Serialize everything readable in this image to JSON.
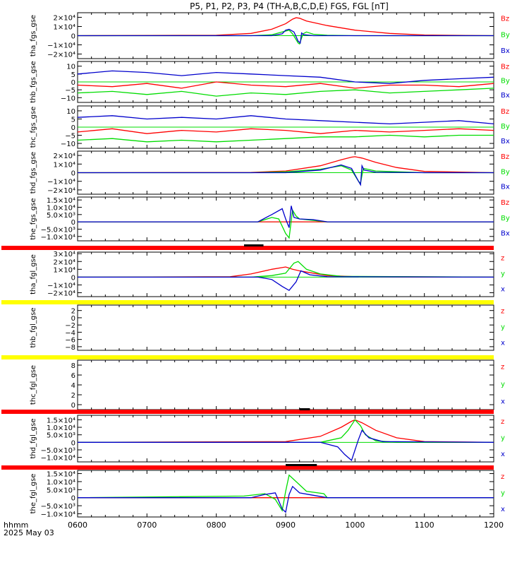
{
  "title": "P5, P1, P2, P3, P4 (TH-A,B,C,D,E) FGS, FGL [nT]",
  "colors": {
    "red": "#ff0000",
    "green": "#00dd00",
    "blue": "#0000cc",
    "yellow": "#ffff00",
    "purple": "#8800aa"
  },
  "xaxis": {
    "range": [
      600,
      1200
    ],
    "ticks": [
      "0600",
      "0700",
      "0800",
      "0900",
      "1000",
      "1100",
      "1200"
    ],
    "label_top": "hhmm",
    "label_bottom": "2025 May 03"
  },
  "chart_data": [
    {
      "type": "line",
      "ylabel": "tha_fgs_gse",
      "ylim": [
        -25000,
        25000
      ],
      "ytick_values": [
        20000,
        10000,
        0,
        -10000,
        -20000
      ],
      "ytick_labels": [
        "2×10⁴",
        "1×10⁴",
        "0",
        "−1×10⁴",
        "−2×10⁴"
      ],
      "legend": [
        "Bz",
        "By",
        "Bx"
      ],
      "series": [
        {
          "name": "Bz",
          "color": "red",
          "x": [
            600,
            800,
            850,
            880,
            900,
            910,
            915,
            920,
            930,
            960,
            1000,
            1050,
            1100,
            1200
          ],
          "y": [
            0,
            500,
            2500,
            7000,
            13000,
            18000,
            19500,
            19000,
            16000,
            11000,
            6000,
            2500,
            800,
            0
          ]
        },
        {
          "name": "By",
          "color": "green",
          "x": [
            600,
            850,
            880,
            895,
            905,
            910,
            918,
            920,
            925,
            930,
            940,
            960,
            1000,
            1200
          ],
          "y": [
            0,
            0,
            1000,
            4000,
            6000,
            2000,
            -8000,
            -9000,
            2000,
            4000,
            1500,
            500,
            0,
            0
          ]
        },
        {
          "name": "Bx",
          "color": "blue",
          "x": [
            600,
            880,
            895,
            900,
            905,
            912,
            918,
            921,
            923,
            926,
            940,
            1000,
            1200
          ],
          "y": [
            0,
            0,
            2000,
            6000,
            7000,
            4000,
            -6000,
            -8000,
            3000,
            1000,
            0,
            0,
            0
          ]
        }
      ]
    },
    {
      "type": "line",
      "ylabel": "thb_fgs_gse",
      "ylim": [
        -13,
        13
      ],
      "ytick_values": [
        10,
        5,
        0,
        -5,
        -10
      ],
      "ytick_labels": [
        "10",
        "5",
        "0",
        "−5",
        "−10"
      ],
      "legend": [
        "Bz",
        "By",
        "Bx"
      ],
      "series": [
        {
          "name": "Bz",
          "color": "red",
          "x": [
            600,
            650,
            700,
            750,
            800,
            850,
            900,
            950,
            1000,
            1050,
            1100,
            1150,
            1200
          ],
          "y": [
            -2,
            -3,
            -1,
            -4,
            0,
            -2,
            -3,
            -1,
            -4,
            -2,
            -2,
            -3,
            -1
          ]
        },
        {
          "name": "By",
          "color": "green",
          "x": [
            600,
            650,
            700,
            750,
            800,
            850,
            900,
            950,
            1000,
            1050,
            1100,
            1150,
            1200
          ],
          "y": [
            -7,
            -6,
            -8,
            -6,
            -9,
            -7,
            -8,
            -6,
            -5,
            -7,
            -6,
            -5,
            -4
          ]
        },
        {
          "name": "Bx",
          "color": "blue",
          "x": [
            600,
            650,
            700,
            750,
            800,
            850,
            900,
            950,
            1000,
            1050,
            1100,
            1150,
            1200
          ],
          "y": [
            5,
            7,
            6,
            4,
            6,
            5,
            4,
            3,
            0,
            -1,
            1,
            2,
            3
          ]
        }
      ]
    },
    {
      "type": "line",
      "ylabel": "thc_fgs_gse",
      "ylim": [
        -13,
        13
      ],
      "ytick_values": [
        10,
        5,
        0,
        -5,
        -10
      ],
      "ytick_labels": [
        "10",
        "5",
        "0",
        "−5",
        "−10"
      ],
      "legend": [
        "Bz",
        "By",
        "Bx"
      ],
      "series": [
        {
          "name": "Bz",
          "color": "red",
          "x": [
            600,
            650,
            700,
            750,
            800,
            850,
            900,
            950,
            1000,
            1050,
            1100,
            1150,
            1200
          ],
          "y": [
            -3,
            -1,
            -4,
            -2,
            -3,
            -1,
            -2,
            -4,
            -2,
            -3,
            -2,
            -1,
            -2
          ]
        },
        {
          "name": "By",
          "color": "green",
          "x": [
            600,
            650,
            700,
            750,
            800,
            850,
            900,
            950,
            1000,
            1050,
            1100,
            1150,
            1200
          ],
          "y": [
            -8,
            -7,
            -9,
            -8,
            -9,
            -8,
            -7,
            -6,
            -6,
            -5,
            -6,
            -5,
            -5
          ]
        },
        {
          "name": "Bx",
          "color": "blue",
          "x": [
            600,
            650,
            700,
            750,
            800,
            850,
            900,
            950,
            1000,
            1050,
            1100,
            1150,
            1200
          ],
          "y": [
            6,
            7,
            5,
            6,
            5,
            7,
            5,
            4,
            3,
            2,
            3,
            4,
            2
          ]
        }
      ]
    },
    {
      "type": "line",
      "ylabel": "thd_fgs_gse",
      "ylim": [
        -25000,
        25000
      ],
      "ytick_values": [
        20000,
        10000,
        0,
        -10000,
        -20000
      ],
      "ytick_labels": [
        "2×10⁴",
        "1×10⁴",
        "0",
        "−1×10⁴",
        "−2×10⁴"
      ],
      "legend": [
        "Bz",
        "By",
        "Bx"
      ],
      "series": [
        {
          "name": "Bz",
          "color": "red",
          "x": [
            600,
            850,
            900,
            950,
            980,
            995,
            1000,
            1010,
            1030,
            1060,
            1100,
            1200
          ],
          "y": [
            0,
            300,
            2000,
            8000,
            15000,
            18000,
            18500,
            17000,
            12000,
            6000,
            1500,
            0
          ]
        },
        {
          "name": "By",
          "color": "green",
          "x": [
            600,
            850,
            900,
            950,
            980,
            995,
            1005,
            1008,
            1012,
            1030,
            1100,
            1200
          ],
          "y": [
            0,
            0,
            1000,
            4000,
            8000,
            3000,
            -10000,
            -12000,
            5000,
            2000,
            0,
            0
          ]
        },
        {
          "name": "Bx",
          "color": "blue",
          "x": [
            600,
            900,
            950,
            980,
            995,
            1005,
            1008,
            1010,
            1013,
            1030,
            1100,
            1200
          ],
          "y": [
            0,
            0,
            3000,
            9000,
            5000,
            -10000,
            -14000,
            8000,
            3000,
            500,
            0,
            0
          ]
        }
      ]
    },
    {
      "type": "line",
      "ylabel": "the_fgs_gse",
      "ylim": [
        -13000,
        17000
      ],
      "ytick_values": [
        15000,
        10000,
        5000,
        0,
        -5000,
        -10000
      ],
      "ytick_labels": [
        "1.5×10⁴",
        "1.0×10⁴",
        "5.0×10³",
        "0",
        "−5.0×10³",
        "−1.0×10⁴"
      ],
      "legend": [
        "Bz",
        "By",
        "Bx"
      ],
      "series": [
        {
          "name": "Bz",
          "color": "red",
          "x": [
            600,
            1200
          ],
          "y": [
            0,
            0
          ]
        },
        {
          "name": "By",
          "color": "green",
          "x": [
            600,
            860,
            880,
            890,
            900,
            905,
            910,
            915,
            920,
            940,
            960,
            1200
          ],
          "y": [
            0,
            0,
            3000,
            2000,
            -8000,
            -11000,
            8000,
            4000,
            2000,
            1000,
            0,
            0
          ]
        },
        {
          "name": "Bx",
          "color": "blue",
          "x": [
            600,
            860,
            880,
            895,
            900,
            905,
            908,
            912,
            920,
            940,
            960,
            1200
          ],
          "y": [
            0,
            0,
            5000,
            9000,
            2000,
            -4000,
            11000,
            3000,
            2000,
            1500,
            0,
            0
          ]
        }
      ]
    },
    {
      "type": "line",
      "ylabel": "tha_fgl_gse",
      "ylim": [
        -25000,
        32000
      ],
      "ytick_values": [
        30000,
        20000,
        10000,
        0,
        -10000,
        -20000
      ],
      "ytick_labels": [
        "3×10⁴",
        "2×10⁴",
        "1×10⁴",
        "0",
        "−1×10⁴",
        "−2×10⁴"
      ],
      "legend": [
        "z",
        "y",
        "x"
      ],
      "series": [
        {
          "name": "z",
          "color": "red",
          "x": [
            600,
            820,
            850,
            880,
            900,
            910,
            920,
            940,
            960,
            1000,
            1200
          ],
          "y": [
            0,
            500,
            4000,
            10000,
            13000,
            10000,
            8000,
            5000,
            2000,
            500,
            0
          ]
        },
        {
          "name": "y",
          "color": "green",
          "x": [
            600,
            850,
            880,
            900,
            912,
            918,
            930,
            950,
            980,
            1200
          ],
          "y": [
            0,
            0,
            2000,
            5000,
            18000,
            20000,
            10000,
            4000,
            1000,
            0
          ]
        },
        {
          "name": "x",
          "color": "blue",
          "x": [
            600,
            860,
            880,
            895,
            905,
            915,
            922,
            935,
            960,
            1200
          ],
          "y": [
            0,
            0,
            -3000,
            -12000,
            -17000,
            -6000,
            8000,
            3000,
            500,
            0
          ]
        }
      ]
    },
    {
      "type": "line",
      "ylabel": "thb_fgl_gse",
      "ylim": [
        -9,
        3.5
      ],
      "ytick_values": [
        2,
        0,
        -2,
        -4,
        -6,
        -8
      ],
      "ytick_labels": [
        "2",
        "0",
        "−2",
        "−4",
        "−6",
        "−8"
      ],
      "legend": [
        "z",
        "y",
        "x"
      ],
      "series": []
    },
    {
      "type": "line",
      "ylabel": "thc_fgl_gse",
      "ylim": [
        -1,
        9
      ],
      "ytick_values": [
        8,
        6,
        4,
        2,
        0
      ],
      "ytick_labels": [
        "8",
        "6",
        "4",
        "2",
        "0"
      ],
      "legend": [
        "z",
        "y",
        "x"
      ],
      "series": []
    },
    {
      "type": "line",
      "ylabel": "thd_fgl_gse",
      "ylim": [
        -13000,
        18000
      ],
      "ytick_values": [
        15000,
        10000,
        5000,
        0,
        -5000,
        -10000
      ],
      "ytick_labels": [
        "1.5×10⁴",
        "1.0×10⁴",
        "5.0×10³",
        "0",
        "−5.0×10³",
        "−1.0×10⁴"
      ],
      "legend": [
        "z",
        "y",
        "x"
      ],
      "series": [
        {
          "name": "z",
          "color": "red",
          "x": [
            600,
            900,
            950,
            980,
            995,
            1000,
            1010,
            1030,
            1060,
            1100,
            1200
          ],
          "y": [
            0,
            500,
            4000,
            10000,
            14000,
            15000,
            13000,
            8000,
            3000,
            500,
            0
          ]
        },
        {
          "name": "y",
          "color": "green",
          "x": [
            600,
            950,
            980,
            990,
            1000,
            1008,
            1015,
            1030,
            1060,
            1200
          ],
          "y": [
            0,
            0,
            3000,
            8000,
            15000,
            11000,
            5000,
            1000,
            0,
            0
          ]
        },
        {
          "name": "x",
          "color": "blue",
          "x": [
            600,
            950,
            975,
            985,
            995,
            1005,
            1010,
            1020,
            1040,
            1200
          ],
          "y": [
            0,
            0,
            -3000,
            -8000,
            -12000,
            2000,
            8000,
            3000,
            500,
            0
          ]
        }
      ]
    },
    {
      "type": "line",
      "ylabel": "the_fgl_gse",
      "ylim": [
        -12000,
        17000
      ],
      "ytick_values": [
        15000,
        10000,
        5000,
        0,
        -5000,
        -10000
      ],
      "ytick_labels": [
        "1.5×10⁴",
        "1.0×10⁴",
        "5.0×10³",
        "0",
        "−5.0×10³",
        "−1.0×10⁴"
      ],
      "legend": [
        "z",
        "y",
        "x"
      ],
      "series": [
        {
          "name": "z",
          "color": "red",
          "x": [
            600,
            1200
          ],
          "y": [
            0,
            0
          ]
        },
        {
          "name": "y",
          "color": "green",
          "x": [
            600,
            840,
            870,
            885,
            895,
            900,
            905,
            915,
            930,
            955,
            960,
            1200
          ],
          "y": [
            0,
            1000,
            2500,
            -1000,
            -8000,
            4000,
            14000,
            10000,
            4000,
            2500,
            0,
            0
          ]
        },
        {
          "name": "x",
          "color": "blue",
          "x": [
            600,
            850,
            870,
            885,
            895,
            900,
            905,
            910,
            920,
            940,
            960,
            1200
          ],
          "y": [
            0,
            0,
            2000,
            3000,
            -7000,
            -9000,
            2000,
            7000,
            3000,
            1500,
            0,
            0
          ]
        }
      ]
    }
  ]
}
